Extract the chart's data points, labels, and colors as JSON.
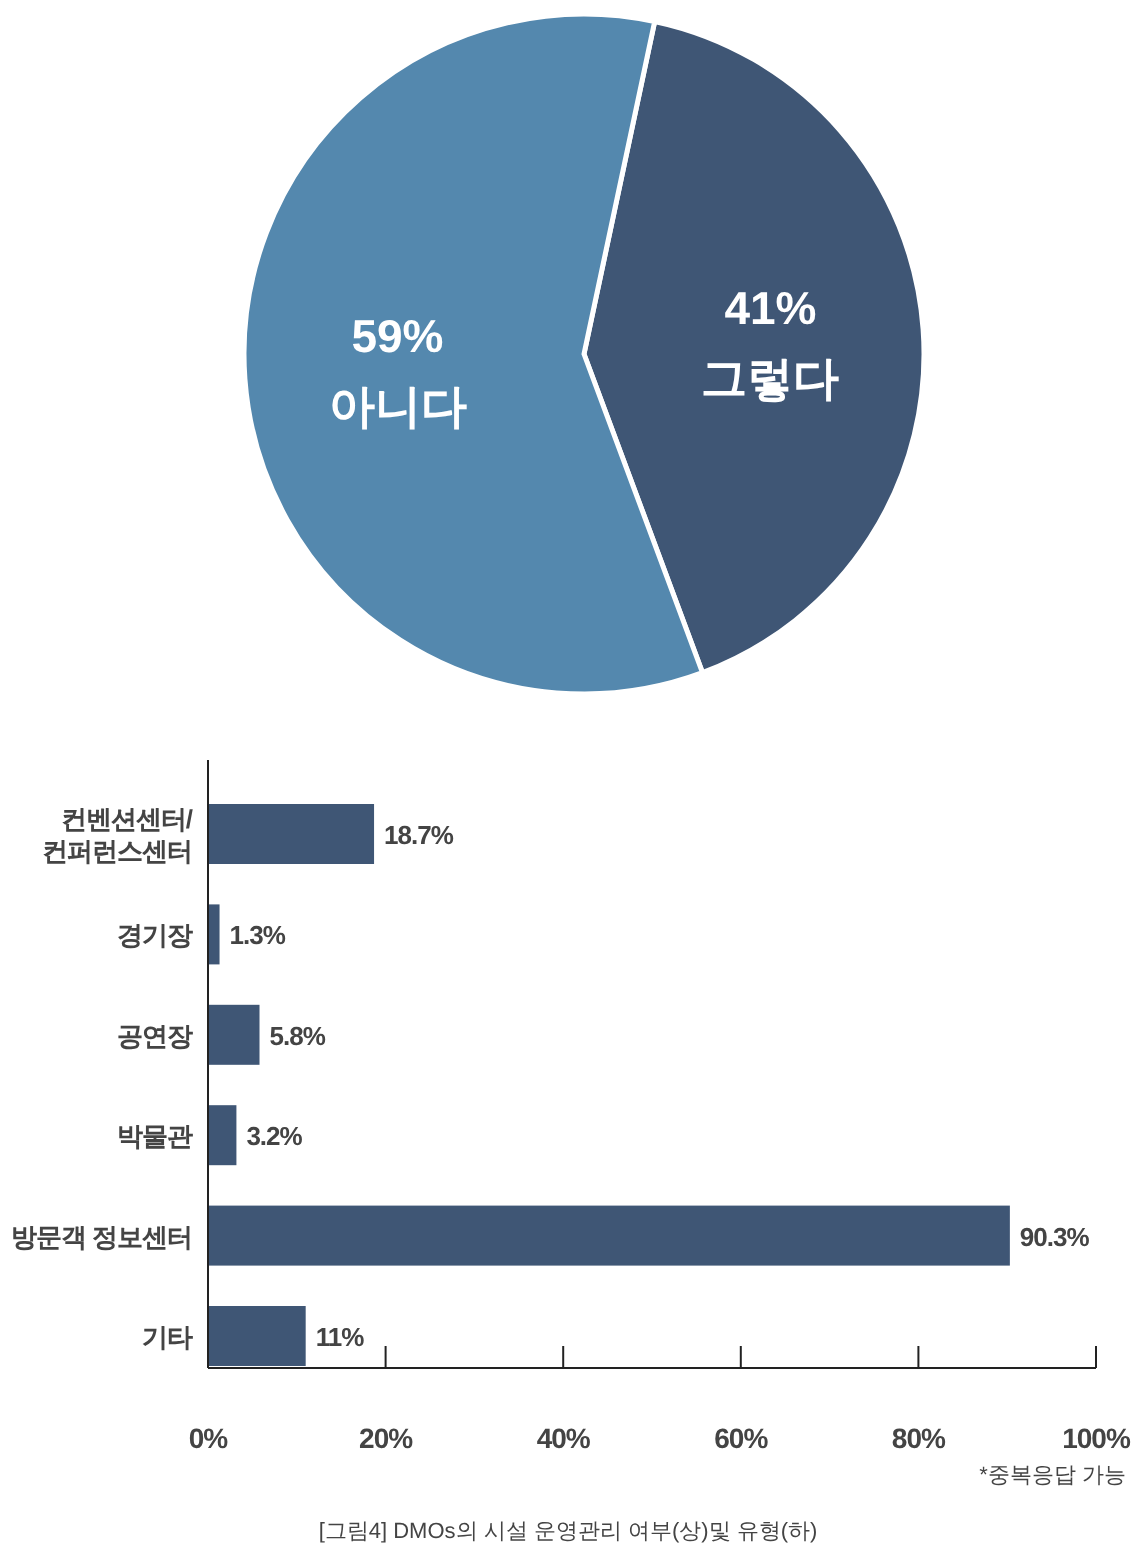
{
  "chart_data": [
    {
      "type": "pie",
      "categories": [
        "그렇다",
        "아니다"
      ],
      "values": [
        41,
        59
      ],
      "colors": [
        "#3f5675",
        "#5488ae"
      ],
      "value_labels": [
        "41%",
        "59%"
      ]
    },
    {
      "type": "bar",
      "orientation": "horizontal",
      "categories": [
        "컨벤션센터/컨퍼런스센터",
        "경기장",
        "공연장",
        "박물관",
        "방문객 정보센터",
        "기타"
      ],
      "values": [
        18.7,
        1.3,
        5.8,
        3.2,
        90.3,
        11
      ],
      "color": "#3f5675",
      "value_labels": [
        "18.7%",
        "1.3%",
        "5.8%",
        "3.2%",
        "90.3%",
        "11%"
      ],
      "xlim": [
        0,
        100
      ],
      "xticks": [
        {
          "value": 0,
          "label": "0%"
        },
        {
          "value": 20,
          "label": "20%"
        },
        {
          "value": 40,
          "label": "40%"
        },
        {
          "value": 60,
          "label": "60%"
        },
        {
          "value": 80,
          "label": "80%"
        },
        {
          "value": 100,
          "label": "100%"
        }
      ],
      "annotations": [
        "*중복응답 가능",
        "[그림4] DMOs의 시설 운영관리 여부(상)및 유형(하)"
      ]
    }
  ]
}
